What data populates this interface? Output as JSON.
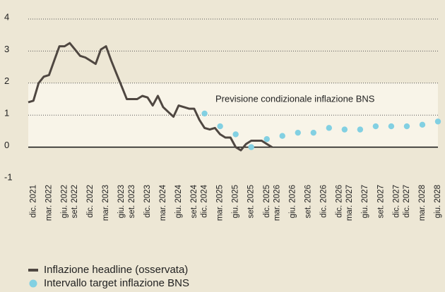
{
  "chart_data": {
    "type": "line",
    "annotation": "Previsione condizionale inflazione BNS",
    "target_band": [
      0,
      2
    ],
    "categories": [
      null,
      "dic. 2021",
      null,
      null,
      "mar. 2022",
      null,
      null,
      "giu. 2022",
      null,
      "set. 2022",
      null,
      null,
      "dic. 2022",
      null,
      null,
      "mar. 2023",
      null,
      null,
      "giu. 2023",
      null,
      "set. 2023",
      null,
      null,
      "dic. 2023",
      null,
      null,
      "mar. 2024",
      null,
      null,
      "giu. 2024",
      null,
      null,
      "set. 2024",
      null,
      "dic. 2024",
      null,
      null,
      "mar. 2025",
      null,
      null,
      "giu. 2025",
      null,
      null,
      "set. 2025",
      null,
      null,
      "dic. 2025",
      null,
      "mar. 2026",
      null,
      null,
      "giu. 2026",
      null,
      null,
      "set. 2026",
      null,
      null,
      "dic. 2026",
      null,
      null,
      "dic. 2026",
      null,
      "mar. 2027",
      null,
      null,
      "giu. 2027",
      null,
      null,
      "set. 2027",
      null,
      null,
      "dic. 2027",
      null,
      "dic. 2027",
      null,
      null,
      "mar. 2028",
      null,
      null,
      "giu. 2028"
    ],
    "series": [
      {
        "name": "Inflazione headline (osservata)",
        "color": "#4f4741",
        "style": "line",
        "values": [
          1.4,
          1.45,
          2.0,
          2.2,
          2.25,
          2.7,
          3.15,
          3.15,
          3.25,
          3.05,
          2.85,
          2.8,
          2.7,
          2.6,
          3.05,
          3.15,
          2.7,
          2.3,
          1.9,
          1.5,
          1.5,
          1.5,
          1.6,
          1.55,
          1.3,
          1.6,
          1.25,
          1.1,
          0.95,
          1.3,
          1.25,
          1.2,
          1.2,
          0.85,
          0.6,
          0.55,
          0.6,
          0.4,
          0.3,
          0.3,
          0,
          -0.1,
          0.1,
          0.2,
          0.2,
          0.2,
          0.1,
          0,
          null,
          null,
          null,
          null,
          null,
          null,
          null,
          null,
          null,
          null,
          null,
          null,
          null,
          null,
          null,
          null,
          null,
          null,
          null,
          null,
          null,
          null,
          null,
          null,
          null,
          null,
          null,
          null,
          null,
          null,
          null,
          null
        ]
      },
      {
        "name": "Intervallo target inflazione BNS",
        "color": "#82d0e2",
        "style": "dots",
        "values": [
          null,
          null,
          null,
          null,
          null,
          null,
          null,
          null,
          null,
          null,
          null,
          null,
          null,
          null,
          null,
          null,
          null,
          null,
          null,
          null,
          null,
          null,
          null,
          null,
          null,
          null,
          null,
          null,
          null,
          null,
          null,
          null,
          null,
          null,
          1.05,
          null,
          null,
          0.65,
          null,
          null,
          0.4,
          null,
          null,
          0,
          null,
          null,
          0.25,
          null,
          null,
          0.35,
          null,
          null,
          0.45,
          null,
          null,
          0.45,
          null,
          null,
          0.6,
          null,
          null,
          0.55,
          null,
          null,
          0.55,
          null,
          null,
          0.65,
          null,
          null,
          0.65,
          null,
          null,
          0.65,
          null,
          null,
          0.7,
          null,
          null,
          0.8
        ]
      }
    ],
    "ylim": [
      -1,
      4
    ],
    "yticks": [
      -1,
      0,
      1,
      2,
      3,
      4
    ],
    "grid": true
  }
}
